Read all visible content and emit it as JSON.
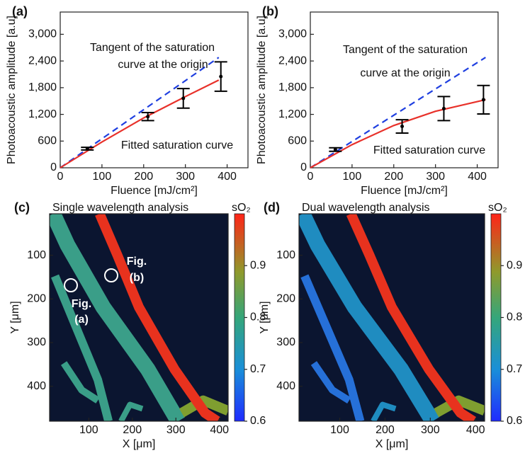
{
  "chart_data": [
    {
      "type": "scatter",
      "label": "(a)",
      "ylabel": "Photoacoustic amplitude [a.u]",
      "xlabel": "Fluence [mJ/cm²]",
      "xlim": [
        0,
        450
      ],
      "xticks": [
        0,
        100,
        200,
        300,
        400
      ],
      "ylim": [
        0,
        3500
      ],
      "yticks": [
        0,
        600,
        {
          "value": 1200,
          "label": "1,200"
        },
        {
          "value": 1800,
          "label": "1,800"
        },
        {
          "value": 2400,
          "label": "2,400"
        },
        {
          "value": 3000,
          "label": "3,000"
        }
      ],
      "annotations": [
        "Tangent of the saturation",
        "curve at the origin",
        "Fitted saturation curve"
      ],
      "points": {
        "x": [
          65,
          210,
          295,
          385
        ],
        "values": [
          430,
          1150,
          1560,
          2050
        ],
        "errors": [
          30,
          90,
          220,
          330
        ],
        "color": "#000000"
      },
      "fit": {
        "x": [
          0,
          100,
          200,
          300,
          380
        ],
        "values": [
          0,
          580,
          1120,
          1600,
          1970
        ],
        "color": "#e8312a"
      },
      "tangent": {
        "x": [
          0,
          380
        ],
        "values": [
          0,
          2480
        ],
        "color": "#1f3fe0"
      }
    },
    {
      "type": "scatter",
      "label": "(b)",
      "ylabel": "Photoacoustic amplitude [a.u]",
      "xlabel": "Fluence [mJ/cm²]",
      "xlim": [
        0,
        450
      ],
      "xticks": [
        0,
        100,
        200,
        300,
        400
      ],
      "ylim": [
        0,
        3500
      ],
      "yticks": [
        0,
        600,
        {
          "value": 1200,
          "label": "1,200"
        },
        {
          "value": 1800,
          "label": "1,800"
        },
        {
          "value": 2400,
          "label": "2,400"
        },
        {
          "value": 3000,
          "label": "3,000"
        }
      ],
      "annotations": [
        "Tangent of the saturation",
        "curve at the origin",
        "Fitted saturation curve"
      ],
      "points": {
        "x": [
          60,
          220,
          320,
          415
        ],
        "values": [
          410,
          930,
          1330,
          1530
        ],
        "errors": [
          40,
          150,
          270,
          320
        ],
        "color": "#000000"
      },
      "fit": {
        "x": [
          0,
          100,
          200,
          300,
          420
        ],
        "values": [
          0,
          520,
          950,
          1270,
          1530
        ],
        "color": "#e8312a"
      },
      "tangent": {
        "x": [
          0,
          420
        ],
        "values": [
          0,
          2480
        ],
        "color": "#1f3fe0"
      }
    },
    {
      "type": "image",
      "label": "(c)",
      "title": "Single wavelength analysis",
      "ylabel": "Y [μm]",
      "xlabel": "X [μm]",
      "xlim": [
        10,
        420
      ],
      "xticks": [
        100,
        200,
        300,
        400
      ],
      "ylim": [
        5,
        480
      ],
      "yticks": [
        100,
        200,
        300,
        400
      ],
      "colorbar_label": "sO₂",
      "clim": [
        0.6,
        1.0
      ],
      "cticks": [
        0.6,
        0.7,
        0.8,
        0.9
      ],
      "annotations": [
        "Fig.",
        "(a)",
        "Fig.",
        "(b)"
      ]
    },
    {
      "type": "image",
      "label": "(d)",
      "title": "Dual wavelength analysis",
      "ylabel": "Y [μm]",
      "xlabel": "X [μm]",
      "xlim": [
        10,
        420
      ],
      "xticks": [
        100,
        200,
        300,
        400
      ],
      "ylim": [
        5,
        480
      ],
      "yticks": [
        100,
        200,
        300,
        400
      ],
      "colorbar_label": "sO₂",
      "clim": [
        0.6,
        1.0
      ],
      "cticks": [
        0.6,
        0.7,
        0.8,
        0.9
      ],
      "annotations": []
    }
  ]
}
